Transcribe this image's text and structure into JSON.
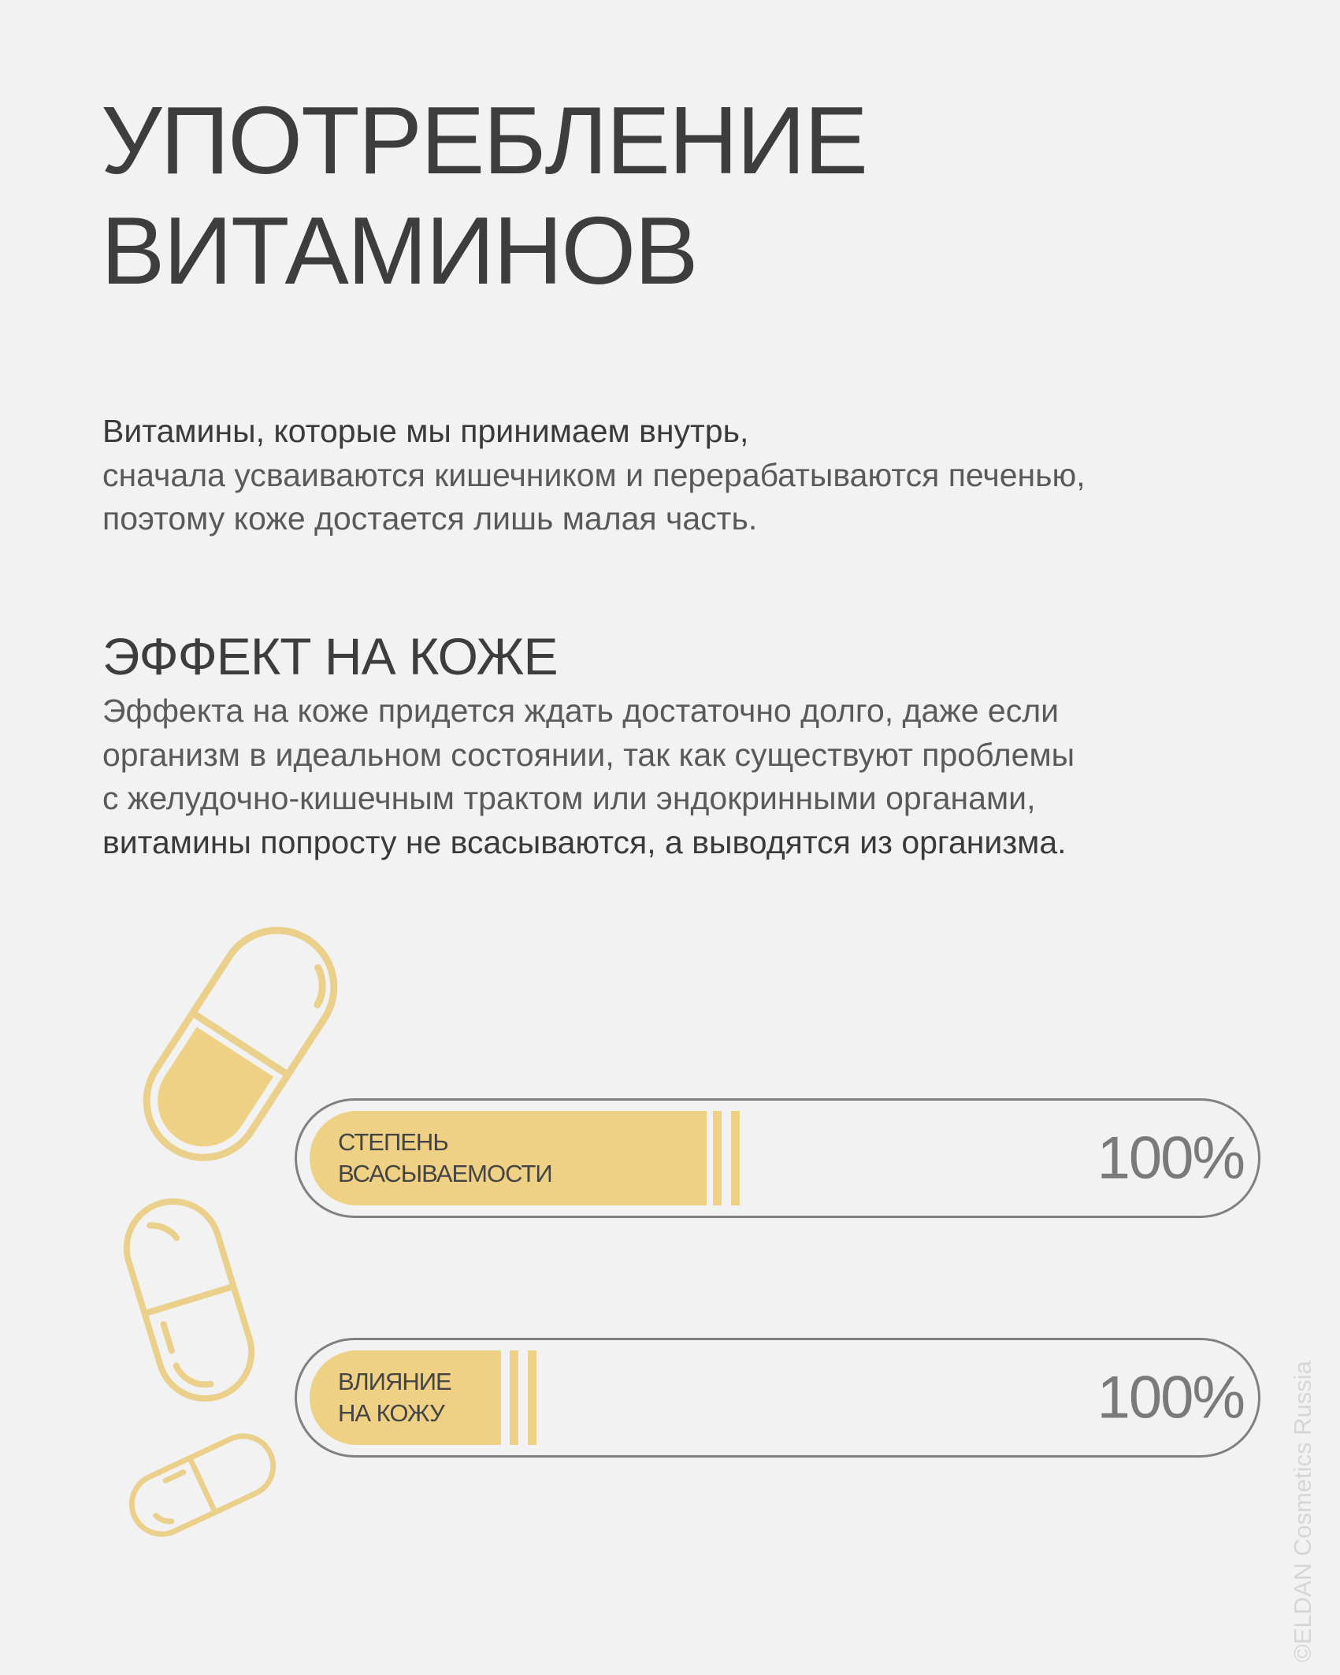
{
  "title": {
    "line1": "УПОТРЕБЛЕНИЕ",
    "line2": "ВИТАМИНОВ"
  },
  "intro": {
    "lead": "Витамины, которые мы принимаем внутрь,",
    "rest": "сначала усваиваются кишечником и перерабатываются печенью, поэтому коже достается лишь малая часть."
  },
  "effect": {
    "heading": "ЭФФЕКТ НА КОЖЕ",
    "text": "Эффекта на коже придется ждать достаточно долго, даже если организм в идеальном состоянии, так как существуют проблемы с желудочно-кишечным трактом или эндокринными органами, ",
    "emphasis": "витамины попросту не всасываются, а выводятся из организма."
  },
  "bars": [
    {
      "label_line1": "СТЕПЕНЬ",
      "label_line2": "ВСАСЫВАЕМОСТИ",
      "value": "100%",
      "fill_fraction": 0.42
    },
    {
      "label_line1": "ВЛИЯНИЕ",
      "label_line2": "НА КОЖУ",
      "value": "100%",
      "fill_fraction": 0.2
    }
  ],
  "icons": [
    "pill-icon",
    "pill-icon",
    "pill-icon"
  ],
  "colors": {
    "accent": "#efd185",
    "pill_stroke": "#ead08a",
    "bar_border": "#808080",
    "background": "#f2f2f2"
  },
  "watermark": "©ELDAN Cosmetics Russia"
}
